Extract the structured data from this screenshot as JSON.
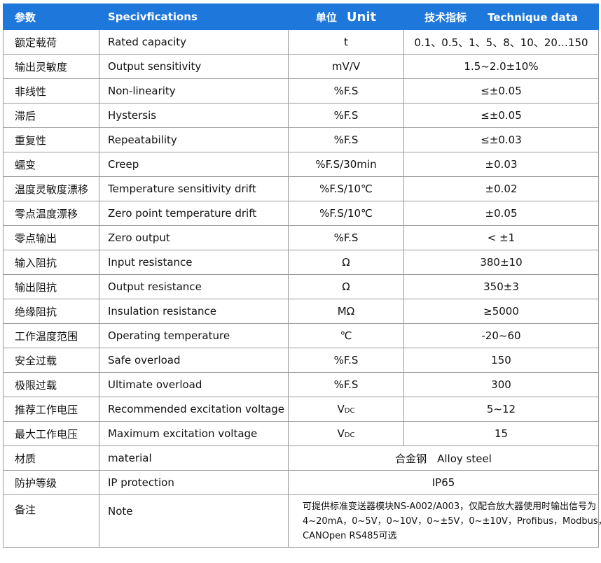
{
  "header": {
    "param": "参数",
    "spec": "Specivfications",
    "unit_cn": "单位",
    "unit_en": "Unit",
    "value_cn": "技术指标",
    "value_en": "Technique data"
  },
  "rows": [
    [
      "额定载荷",
      "Rated capacity",
      "t",
      "0.1、0.5、1、5、8、10、20…150"
    ],
    [
      "输出灵敏度",
      "Output sensitivity",
      "mV/V",
      "1.5~2.0±10%"
    ],
    [
      "非线性",
      "Non-linearity",
      "%F.S",
      "≤±0.05"
    ],
    [
      "滞后",
      "Hystersis",
      "%F.S",
      "≤±0.05"
    ],
    [
      "重复性",
      "Repeatability",
      "%F.S",
      "≤±0.03"
    ],
    [
      "蠕变",
      "Creep",
      "%F.S/30min",
      "±0.03"
    ],
    [
      "温度灵敏度漂移",
      "Temperature sensitivity drift",
      "%F.S/10℃",
      "±0.02"
    ],
    [
      "零点温度漂移",
      "Zero point temperature drift",
      "%F.S/10℃",
      "±0.05"
    ],
    [
      "零点输出",
      "Zero output",
      "%F.S",
      "< ±1"
    ],
    [
      "输入阻抗",
      "Input resistance",
      "Ω",
      "380±10"
    ],
    [
      "输出阻抗",
      "Output resistance",
      "Ω",
      "350±3"
    ],
    [
      "绝缘阻抗",
      "Insulation resistance",
      "MΩ",
      "≥5000"
    ],
    [
      "工作温度范围",
      "Operating temperature",
      "℃",
      "-20~60"
    ],
    [
      "安全过载",
      "Safe overload",
      "%F.S",
      "150"
    ],
    [
      "极限过载",
      "Ultimate overload",
      "%F.S",
      "300"
    ],
    [
      "推荐工作电压",
      "Recommended excitation voltage",
      {
        "text": "V",
        "sub": "DC"
      },
      "5~12"
    ],
    [
      "最大工作电压",
      "Maximum excitation voltage",
      {
        "text": "V",
        "sub": "DC"
      },
      "15"
    ],
    [
      "材质",
      "material",
      "合金钢　Alloy steel"
    ],
    [
      "防护等级",
      "IP protection",
      "IP65"
    ]
  ],
  "note": {
    "param": "备注",
    "spec": "Note",
    "lines": [
      "可提供标准变送器模块NS-A002/A003，仅配合放大器使用时输出信号为",
      "4~20mA，0~5V，0~10V，0~±5V，0~±10V，Profibus，Modbus，",
      "CANOpen  RS485可选"
    ]
  }
}
